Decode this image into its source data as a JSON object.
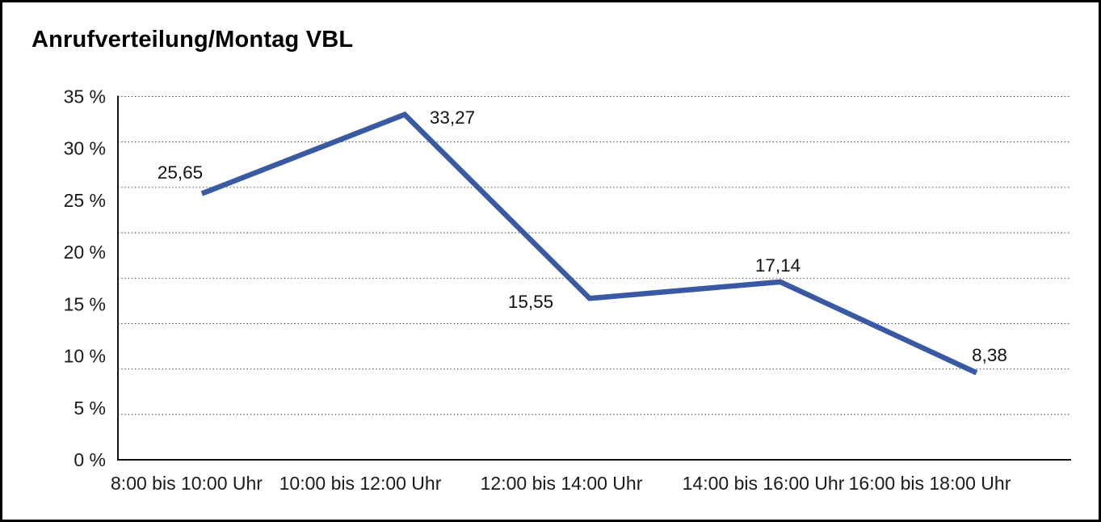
{
  "chart_data": {
    "type": "line",
    "title": "Anrufverteilung/Montag VBL",
    "categories": [
      "8:00 bis 10:00 Uhr",
      "10:00 bis 12:00 Uhr",
      "12:00 bis 14:00 Uhr",
      "14:00 bis 16:00 Uhr",
      "16:00 bis 18:00 Uhr"
    ],
    "values": [
      25.65,
      33.27,
      15.55,
      17.14,
      8.38
    ],
    "value_labels": [
      "25,65",
      "33,27",
      "15,55",
      "17,14",
      "8,38"
    ],
    "y_ticks": [
      35,
      30,
      25,
      20,
      15,
      10,
      5,
      0
    ],
    "y_tick_labels": [
      "35 %",
      "30 %",
      "25 %",
      "20 %",
      "15 %",
      "10 %",
      "5 %",
      "0 %"
    ],
    "ylim": [
      0,
      35
    ],
    "xlabel": "",
    "ylabel": "",
    "legend": "none",
    "grid": "horizontal-dotted",
    "gridline_divisions": 8,
    "line_color": "#3A59A3",
    "axis_color": "#111111",
    "gridline_color": "#3f3f3f",
    "text_color": "#1a1a1a"
  }
}
